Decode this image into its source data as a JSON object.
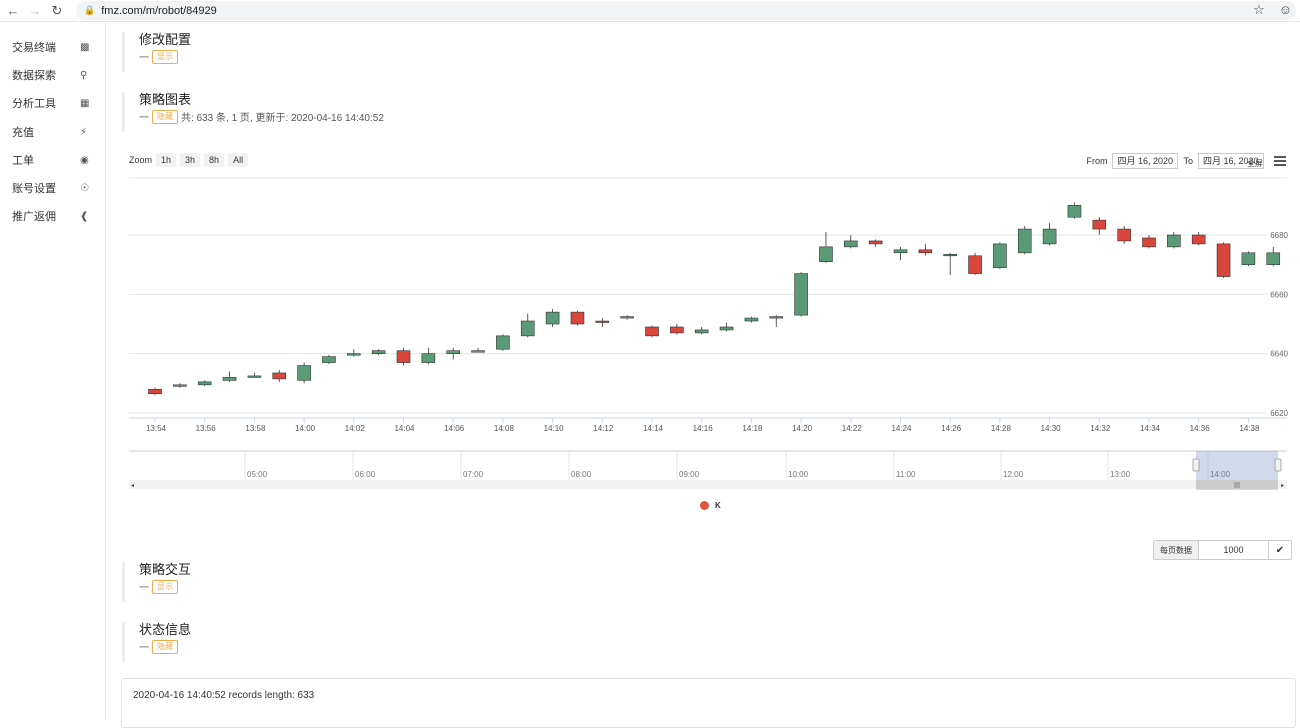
{
  "browser": {
    "url": "fmz.com/m/robot/84929"
  },
  "sidebar": {
    "items": [
      {
        "label": "交易终端",
        "icon": "bar-chart-icon"
      },
      {
        "label": "数据探索",
        "icon": "search-icon"
      },
      {
        "label": "分析工具",
        "icon": "calculator-icon"
      },
      {
        "label": "充值",
        "icon": "plug-icon"
      },
      {
        "label": "工单",
        "icon": "chat-icon"
      },
      {
        "label": "账号设置",
        "icon": "user-circle-icon"
      },
      {
        "label": "推广返佣",
        "icon": "share-icon"
      }
    ]
  },
  "sections": {
    "config": {
      "title": "修改配置",
      "dash": "一",
      "badge": "显示"
    },
    "chart": {
      "title": "策略图表",
      "dash": "一",
      "badge": "隐藏",
      "info": "共: 633 条, 1 页, 更新于: 2020-04-16 14:40:52"
    },
    "interact": {
      "title": "策略交互",
      "dash": "一",
      "badge": "显示"
    },
    "status": {
      "title": "状态信息",
      "dash": "一",
      "badge": "隐藏"
    }
  },
  "toolbar": {
    "zoom_label": "Zoom",
    "zoom_buttons": [
      "1h",
      "3h",
      "8h",
      "All"
    ],
    "from_label": "From",
    "from_value": "四月 16, 2020",
    "to_label": "To",
    "to_value": "四月 16, 2020",
    "fullscreen_label": "全屏"
  },
  "legend": {
    "label": "K",
    "color": "#e0533f"
  },
  "perpage": {
    "label": "每页数据",
    "value": "1000"
  },
  "log_text": "2020-04-16 14:40:52 records length: 633",
  "colors": {
    "up": "#5b9a77",
    "down": "#d9463b"
  },
  "chart_data": {
    "type": "candlestick",
    "x": [
      "13:54",
      "13:55",
      "13:56",
      "13:57",
      "13:58",
      "13:59",
      "14:00",
      "14:01",
      "14:02",
      "14:03",
      "14:04",
      "14:05",
      "14:06",
      "14:07",
      "14:08",
      "14:09",
      "14:10",
      "14:11",
      "14:12",
      "14:13",
      "14:14",
      "14:15",
      "14:16",
      "14:17",
      "14:18",
      "14:19",
      "14:20",
      "14:21",
      "14:22",
      "14:23",
      "14:24",
      "14:25",
      "14:26",
      "14:27",
      "14:28",
      "14:29",
      "14:30",
      "14:31",
      "14:32",
      "14:33",
      "14:34",
      "14:35",
      "14:36",
      "14:37",
      "14:38",
      "14:39"
    ],
    "x_ticks": [
      "13:54",
      "13:56",
      "13:58",
      "14:00",
      "14:02",
      "14:04",
      "14:06",
      "14:08",
      "14:10",
      "14:12",
      "14:14",
      "14:16",
      "14:18",
      "14:20",
      "14:22",
      "14:24",
      "14:26",
      "14:28",
      "14:30",
      "14:32",
      "14:34",
      "14:36",
      "14:38"
    ],
    "y_ticks": [
      6620,
      6640,
      6660,
      6680
    ],
    "ylim": [
      6620,
      6693
    ],
    "open": [
      6628.0,
      6629.0,
      6629.5,
      6631.0,
      6632.5,
      6633.5,
      6631.0,
      6637.0,
      6639.5,
      6640.0,
      6641.0,
      6637.0,
      6640.0,
      6641.0,
      6641.5,
      6646.0,
      6650.0,
      6654.0,
      6651.0,
      6652.0,
      6649.0,
      6649.0,
      6647.0,
      6648.0,
      6651.0,
      6652.0,
      6653.0,
      6671.0,
      6676.0,
      6678.0,
      6674.0,
      6675.0,
      6673.5,
      6673.0,
      6669.0,
      6674.0,
      6677.0,
      6686.0,
      6685.0,
      6682.0,
      6679.0,
      6676.0,
      6680.0,
      6677.0,
      6670.0,
      6670.0
    ],
    "close": [
      6626.5,
      6629.5,
      6630.5,
      6632.0,
      6632.5,
      6631.5,
      6636.0,
      6639.0,
      6640.0,
      6641.0,
      6637.0,
      6640.0,
      6641.0,
      6641.0,
      6646.0,
      6651.0,
      6654.0,
      6650.0,
      6650.5,
      6652.5,
      6646.0,
      6647.0,
      6648.0,
      6649.0,
      6652.0,
      6652.5,
      6667.0,
      6676.0,
      6678.0,
      6677.0,
      6675.0,
      6674.0,
      6673.5,
      6667.0,
      6677.0,
      6682.0,
      6682.0,
      6690.0,
      6682.0,
      6678.0,
      6676.0,
      6680.0,
      6677.0,
      6666.0,
      6674.0,
      6674.0
    ],
    "high": [
      6628.5,
      6630.0,
      6631.0,
      6634.0,
      6633.5,
      6634.5,
      6637.0,
      6639.5,
      6641.5,
      6641.5,
      6642.0,
      6642.0,
      6642.0,
      6642.0,
      6646.5,
      6653.5,
      6655.0,
      6654.5,
      6652.0,
      6653.0,
      6649.5,
      6650.0,
      6649.0,
      6650.5,
      6652.5,
      6653.0,
      6667.5,
      6681.0,
      6680.0,
      6678.5,
      6676.0,
      6677.0,
      6674.0,
      6674.0,
      6677.5,
      6683.0,
      6684.0,
      6691.0,
      6686.0,
      6683.0,
      6680.0,
      6681.0,
      6681.0,
      6677.5,
      6674.5,
      6676.0
    ],
    "low": [
      6626.0,
      6628.5,
      6629.0,
      6630.5,
      6632.0,
      6630.5,
      6630.0,
      6636.5,
      6639.0,
      6639.5,
      6636.0,
      6636.5,
      6638.0,
      6640.5,
      6641.0,
      6645.5,
      6649.0,
      6649.5,
      6649.0,
      6651.5,
      6645.5,
      6646.5,
      6646.5,
      6647.5,
      6650.5,
      6649.0,
      6652.5,
      6670.5,
      6675.5,
      6676.0,
      6671.5,
      6673.0,
      6666.5,
      6666.5,
      6668.5,
      6673.5,
      6676.5,
      6685.5,
      6680.0,
      6677.0,
      6675.5,
      6675.5,
      6676.5,
      6665.5,
      6669.5,
      6669.5
    ],
    "navigator_ticks": [
      "05:00",
      "06:00",
      "07:00",
      "08:00",
      "09:00",
      "10:00",
      "11:00",
      "12:00",
      "13:00",
      "14:00"
    ],
    "series": [
      {
        "name": "K"
      }
    ]
  }
}
